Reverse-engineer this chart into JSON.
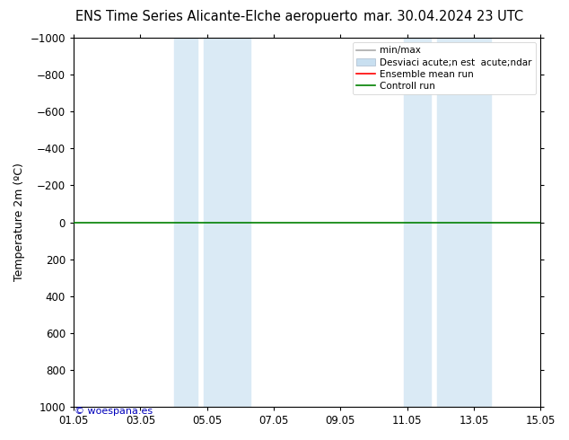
{
  "title_left": "ENS Time Series Alicante-Elche aeropuerto",
  "title_right": "mar. 30.04.2024 23 UTC",
  "ylabel": "Temperature 2m (ºC)",
  "ylim_bottom": 1000,
  "ylim_top": -1000,
  "yticks": [
    -1000,
    -800,
    -600,
    -400,
    -200,
    0,
    200,
    400,
    600,
    800,
    1000
  ],
  "xtick_labels": [
    "01.05",
    "03.05",
    "05.05",
    "07.05",
    "09.05",
    "11.05",
    "13.05",
    "15.05"
  ],
  "xtick_positions": [
    0,
    2,
    4,
    6,
    8,
    10,
    12,
    14
  ],
  "shaded_bands": [
    {
      "x_start": 3.0,
      "x_end": 3.7
    },
    {
      "x_start": 3.9,
      "x_end": 5.3
    },
    {
      "x_start": 9.9,
      "x_end": 10.7
    },
    {
      "x_start": 10.9,
      "x_end": 12.5
    }
  ],
  "shaded_color": "#daeaf5",
  "horizontal_line_y": 0,
  "line_color_control": "#008000",
  "line_color_ensemble": "#ff0000",
  "watermark_text": "© woespana.es",
  "watermark_color": "#0000bb",
  "legend_label_minmax": "min/max",
  "legend_label_std": "Desviaci acute;n est  acute;ndar",
  "legend_label_ensemble": "Ensemble mean run",
  "legend_label_control": "Controll run",
  "legend_color_minmax": "#aaaaaa",
  "legend_color_std": "#c8dff0",
  "legend_color_ensemble": "#ff0000",
  "legend_color_control": "#008000",
  "bg_color": "#ffffff",
  "spine_color": "#000000",
  "title_fontsize": 10.5,
  "tick_fontsize": 8.5,
  "ylabel_fontsize": 9,
  "legend_fontsize": 7.5
}
